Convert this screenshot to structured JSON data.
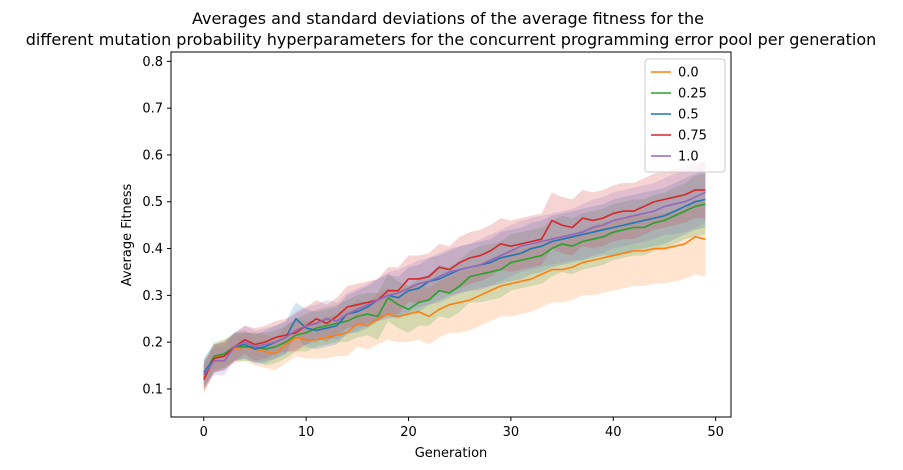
{
  "chart_data": {
    "type": "line",
    "title_lines": [
      "Averages and standard deviations of the average fitness for the",
      "different mutation probability hyperparameters for the concurrent programming error pool per generation"
    ],
    "xlabel": "Generation",
    "ylabel": "Average Fitness",
    "xlim": [
      -3.2,
      51.5
    ],
    "ylim": [
      0.04,
      0.82
    ],
    "xticks": [
      0,
      10,
      20,
      30,
      40,
      50
    ],
    "yticks": [
      0.1,
      0.2,
      0.3,
      0.4,
      0.5,
      0.6,
      0.7,
      0.8
    ],
    "legend_position": "top-right",
    "grid": false,
    "x": [
      0,
      1,
      2,
      3,
      4,
      5,
      6,
      7,
      8,
      9,
      10,
      11,
      12,
      13,
      14,
      15,
      16,
      17,
      18,
      19,
      20,
      21,
      22,
      23,
      24,
      25,
      26,
      27,
      28,
      29,
      30,
      31,
      32,
      33,
      34,
      35,
      36,
      37,
      38,
      39,
      40,
      41,
      42,
      43,
      44,
      45,
      46,
      47,
      48,
      49
    ],
    "series": [
      {
        "name": "0.0",
        "color": "#ff7f0e",
        "values": [
          0.125,
          0.165,
          0.175,
          0.185,
          0.19,
          0.185,
          0.18,
          0.175,
          0.195,
          0.21,
          0.205,
          0.205,
          0.21,
          0.215,
          0.22,
          0.24,
          0.235,
          0.25,
          0.26,
          0.255,
          0.26,
          0.265,
          0.255,
          0.27,
          0.28,
          0.285,
          0.29,
          0.3,
          0.31,
          0.32,
          0.325,
          0.33,
          0.335,
          0.345,
          0.355,
          0.355,
          0.36,
          0.37,
          0.375,
          0.38,
          0.385,
          0.39,
          0.395,
          0.395,
          0.4,
          0.4,
          0.405,
          0.41,
          0.425,
          0.42
        ],
        "std": [
          0.03,
          0.03,
          0.03,
          0.03,
          0.03,
          0.035,
          0.035,
          0.035,
          0.04,
          0.04,
          0.04,
          0.04,
          0.045,
          0.045,
          0.05,
          0.05,
          0.05,
          0.055,
          0.055,
          0.055,
          0.06,
          0.06,
          0.06,
          0.06,
          0.06,
          0.065,
          0.065,
          0.065,
          0.065,
          0.065,
          0.07,
          0.07,
          0.07,
          0.07,
          0.07,
          0.07,
          0.07,
          0.07,
          0.075,
          0.075,
          0.075,
          0.075,
          0.075,
          0.075,
          0.075,
          0.075,
          0.075,
          0.075,
          0.08,
          0.08
        ]
      },
      {
        "name": "0.25",
        "color": "#2ca02c",
        "values": [
          0.13,
          0.17,
          0.175,
          0.19,
          0.19,
          0.19,
          0.185,
          0.19,
          0.2,
          0.215,
          0.22,
          0.23,
          0.235,
          0.24,
          0.245,
          0.255,
          0.26,
          0.255,
          0.295,
          0.28,
          0.27,
          0.285,
          0.29,
          0.31,
          0.305,
          0.32,
          0.34,
          0.345,
          0.35,
          0.355,
          0.37,
          0.375,
          0.38,
          0.385,
          0.4,
          0.41,
          0.405,
          0.415,
          0.42,
          0.425,
          0.435,
          0.44,
          0.445,
          0.445,
          0.455,
          0.46,
          0.47,
          0.48,
          0.49,
          0.495
        ],
        "std": [
          0.03,
          0.03,
          0.03,
          0.03,
          0.03,
          0.03,
          0.035,
          0.035,
          0.035,
          0.035,
          0.04,
          0.04,
          0.04,
          0.04,
          0.045,
          0.045,
          0.045,
          0.05,
          0.05,
          0.05,
          0.05,
          0.05,
          0.055,
          0.055,
          0.055,
          0.055,
          0.055,
          0.06,
          0.06,
          0.06,
          0.06,
          0.06,
          0.06,
          0.06,
          0.06,
          0.06,
          0.06,
          0.06,
          0.06,
          0.06,
          0.06,
          0.06,
          0.06,
          0.06,
          0.06,
          0.06,
          0.06,
          0.06,
          0.065,
          0.065
        ]
      },
      {
        "name": "0.5",
        "color": "#1f77b4",
        "values": [
          0.135,
          0.165,
          0.17,
          0.19,
          0.195,
          0.185,
          0.19,
          0.2,
          0.21,
          0.25,
          0.23,
          0.225,
          0.23,
          0.235,
          0.26,
          0.265,
          0.275,
          0.29,
          0.3,
          0.295,
          0.31,
          0.315,
          0.33,
          0.335,
          0.345,
          0.355,
          0.36,
          0.365,
          0.37,
          0.38,
          0.385,
          0.39,
          0.4,
          0.405,
          0.415,
          0.42,
          0.425,
          0.43,
          0.435,
          0.44,
          0.445,
          0.45,
          0.455,
          0.46,
          0.465,
          0.47,
          0.48,
          0.49,
          0.5,
          0.505
        ],
        "std": [
          0.03,
          0.03,
          0.03,
          0.03,
          0.03,
          0.03,
          0.035,
          0.035,
          0.035,
          0.035,
          0.04,
          0.04,
          0.04,
          0.04,
          0.04,
          0.045,
          0.045,
          0.045,
          0.045,
          0.045,
          0.05,
          0.05,
          0.05,
          0.05,
          0.05,
          0.05,
          0.05,
          0.05,
          0.05,
          0.055,
          0.055,
          0.055,
          0.055,
          0.055,
          0.055,
          0.055,
          0.055,
          0.055,
          0.055,
          0.055,
          0.06,
          0.06,
          0.06,
          0.06,
          0.06,
          0.06,
          0.06,
          0.06,
          0.06,
          0.06
        ]
      },
      {
        "name": "0.75",
        "color": "#d62728",
        "values": [
          0.12,
          0.165,
          0.17,
          0.19,
          0.205,
          0.195,
          0.2,
          0.21,
          0.215,
          0.22,
          0.235,
          0.25,
          0.24,
          0.255,
          0.275,
          0.28,
          0.285,
          0.29,
          0.31,
          0.31,
          0.335,
          0.335,
          0.34,
          0.36,
          0.355,
          0.37,
          0.38,
          0.385,
          0.395,
          0.41,
          0.405,
          0.41,
          0.415,
          0.42,
          0.46,
          0.45,
          0.445,
          0.465,
          0.46,
          0.465,
          0.475,
          0.48,
          0.48,
          0.49,
          0.5,
          0.505,
          0.51,
          0.515,
          0.525,
          0.525
        ],
        "std": [
          0.03,
          0.03,
          0.03,
          0.03,
          0.03,
          0.035,
          0.035,
          0.035,
          0.035,
          0.04,
          0.04,
          0.04,
          0.04,
          0.04,
          0.045,
          0.045,
          0.045,
          0.045,
          0.05,
          0.05,
          0.05,
          0.05,
          0.05,
          0.05,
          0.05,
          0.055,
          0.055,
          0.055,
          0.055,
          0.055,
          0.055,
          0.055,
          0.055,
          0.055,
          0.06,
          0.06,
          0.06,
          0.06,
          0.06,
          0.06,
          0.06,
          0.06,
          0.06,
          0.06,
          0.06,
          0.06,
          0.06,
          0.06,
          0.06,
          0.06
        ]
      },
      {
        "name": "1.0",
        "color": "#9467bd",
        "values": [
          0.13,
          0.16,
          0.16,
          0.19,
          0.2,
          0.19,
          0.195,
          0.2,
          0.21,
          0.225,
          0.235,
          0.24,
          0.25,
          0.245,
          0.26,
          0.27,
          0.28,
          0.29,
          0.3,
          0.305,
          0.315,
          0.325,
          0.33,
          0.34,
          0.35,
          0.355,
          0.36,
          0.365,
          0.375,
          0.385,
          0.395,
          0.405,
          0.41,
          0.415,
          0.42,
          0.425,
          0.43,
          0.435,
          0.445,
          0.45,
          0.46,
          0.465,
          0.47,
          0.475,
          0.48,
          0.49,
          0.495,
          0.5,
          0.51,
          0.52
        ],
        "std": [
          0.03,
          0.03,
          0.03,
          0.03,
          0.035,
          0.035,
          0.035,
          0.035,
          0.035,
          0.04,
          0.04,
          0.04,
          0.04,
          0.04,
          0.045,
          0.045,
          0.045,
          0.045,
          0.05,
          0.05,
          0.05,
          0.05,
          0.05,
          0.05,
          0.05,
          0.05,
          0.05,
          0.055,
          0.055,
          0.055,
          0.055,
          0.055,
          0.055,
          0.055,
          0.055,
          0.055,
          0.055,
          0.06,
          0.06,
          0.06,
          0.06,
          0.06,
          0.06,
          0.06,
          0.06,
          0.06,
          0.065,
          0.065,
          0.065,
          0.065
        ]
      }
    ]
  }
}
